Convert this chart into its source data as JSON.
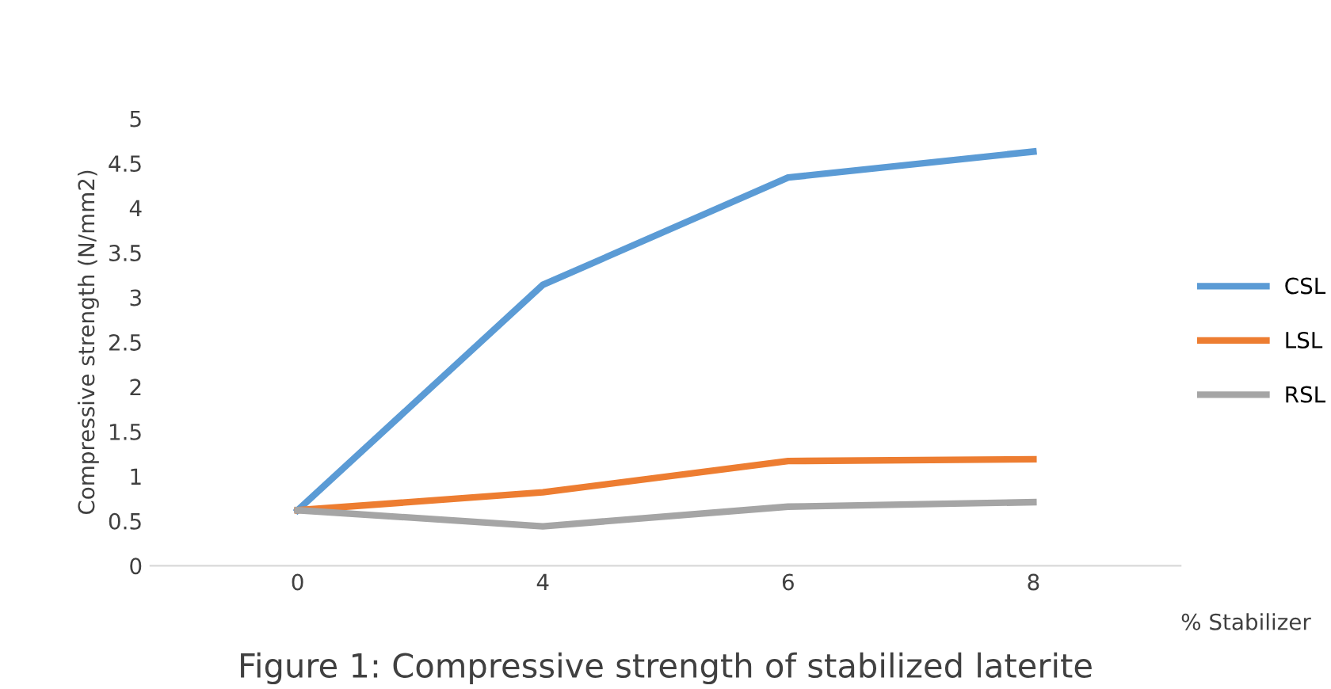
{
  "chart_data": {
    "type": "line",
    "title": "Figure 1: Compressive strength of stabilized laterite",
    "xlabel": "% Stabilizer",
    "ylabel": "Compressive strength (N/mm2)",
    "categories": [
      "0",
      "4",
      "6",
      "8"
    ],
    "series": [
      {
        "name": "CSL",
        "color": "#5b9bd5",
        "values": [
          0.62,
          3.14,
          4.34,
          4.63
        ]
      },
      {
        "name": "LSL",
        "color": "#ed7d31",
        "values": [
          0.62,
          0.82,
          1.17,
          1.19
        ]
      },
      {
        "name": "RSL",
        "color": "#a5a5a5",
        "values": [
          0.62,
          0.44,
          0.66,
          0.71
        ]
      }
    ],
    "ylim": [
      0,
      5
    ],
    "yticks": [
      0,
      0.5,
      1,
      1.5,
      2,
      2.5,
      3,
      3.5,
      4,
      4.5,
      5
    ],
    "grid": false,
    "legend": "right",
    "marker": "none",
    "line_style": "solid"
  }
}
